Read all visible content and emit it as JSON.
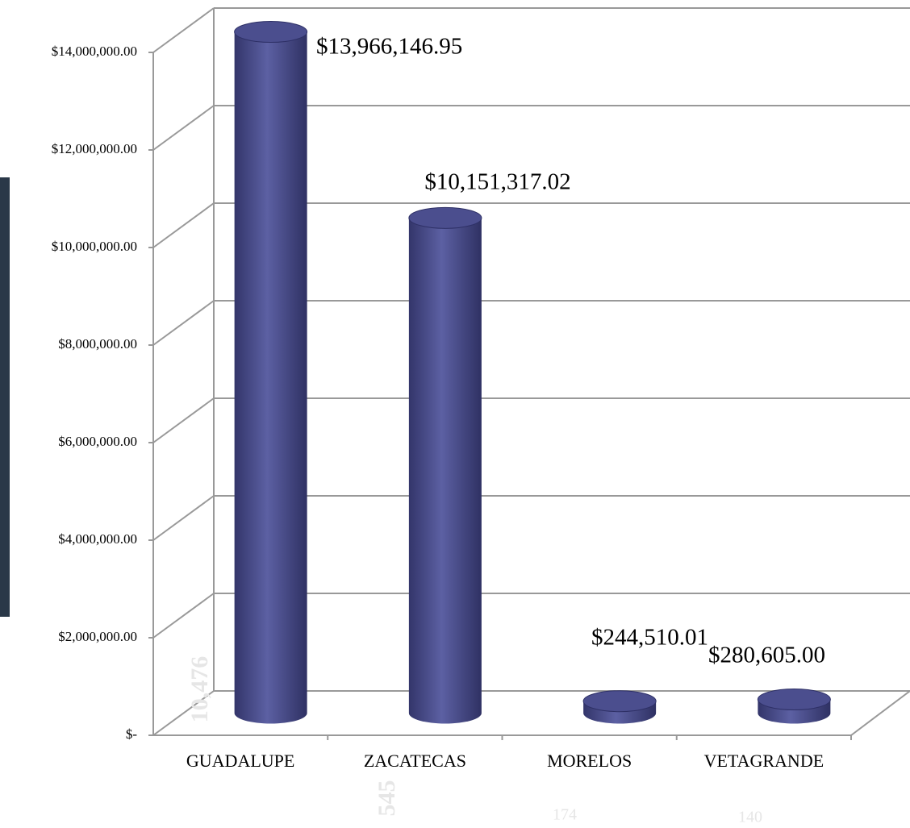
{
  "chart_data": {
    "type": "bar3d",
    "categories": [
      "GUADALUPE",
      "ZACATECAS",
      "MORELOS",
      "VETAGRANDE"
    ],
    "values": [
      13966146.95,
      10151317.02,
      244510.01,
      280605.0
    ],
    "value_labels": [
      "$13,966,146.95",
      "$10,151,317.02",
      "$244,510.01",
      "$280,605.00"
    ],
    "color": "#4b4e8e",
    "ylim": [
      0,
      14000000
    ],
    "yticks": [
      {
        "value": 0,
        "label": "$-"
      },
      {
        "value": 2000000,
        "label": "$2,000,000.00"
      },
      {
        "value": 4000000,
        "label": "$4,000,000.00"
      },
      {
        "value": 6000000,
        "label": "$6,000,000.00"
      },
      {
        "value": 8000000,
        "label": "$8,000,000.00"
      },
      {
        "value": 10000000,
        "label": "$10,000,000.00"
      },
      {
        "value": 12000000,
        "label": "$12,000,000.00"
      },
      {
        "value": 14000000,
        "label": "$14,000,000.00"
      }
    ],
    "grid": true,
    "background_labels": [
      "10,476",
      "545",
      "174",
      "140"
    ]
  }
}
